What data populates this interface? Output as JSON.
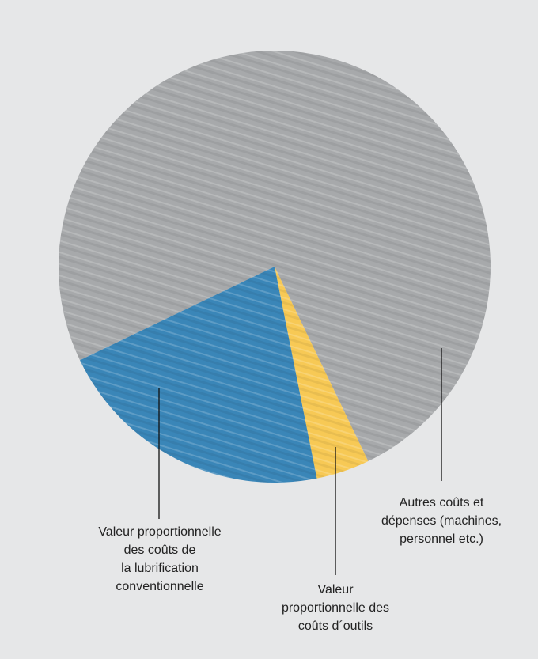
{
  "chart_data": {
    "type": "pie",
    "categories": [
      "Autres coûts et\ndépenses (machines,\npersonnel etc.)",
      "Valeur\nproportionnelle des\ncoûts d´outils",
      "Valeur proportionnelle\ndes coûts de\nla lubrification\nconventionnelle"
    ],
    "values": [
      75,
      4,
      21
    ],
    "colors": [
      "#a7a9ab",
      "#f7c955",
      "#3a86b8"
    ]
  }
}
